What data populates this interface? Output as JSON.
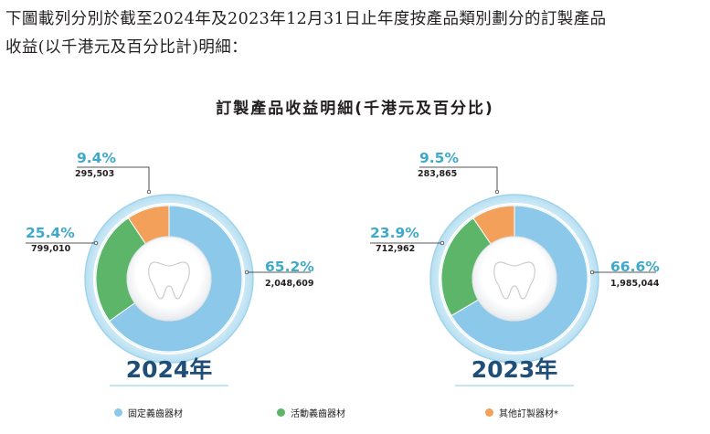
{
  "intro": {
    "line1": "下圖載列分別於截至2024年及2023年12月31日止年度按產品類別劃分的訂製產品",
    "line2": "收益(以千港元及百分比計)明細："
  },
  "colors": {
    "fixed": "#8cc8ea",
    "removable": "#5cb568",
    "other": "#f3a15a",
    "accent": "#3fa9c9",
    "year": "#1f4e79"
  },
  "chart_data": {
    "type": "pie",
    "title": "訂製產品收益明細(千港元及百分比)",
    "categories": [
      "固定義齒器材",
      "活動義齒器材",
      "其他訂製器材*"
    ],
    "charts": [
      {
        "year_label": "2024年",
        "values": [
          2048609,
          799010,
          295503
        ],
        "percent_labels": [
          "65.2%",
          "25.4%",
          "9.4%"
        ],
        "value_labels": [
          "2,048,609",
          "799,010",
          "295,503"
        ]
      },
      {
        "year_label": "2023年",
        "values": [
          1985044,
          712962,
          283865
        ],
        "percent_labels": [
          "66.6%",
          "23.9%",
          "9.5%"
        ],
        "value_labels": [
          "1,985,044",
          "712,962",
          "283,865"
        ]
      }
    ]
  },
  "legend": [
    {
      "label": "固定義齒器材",
      "color": "#8cc8ea"
    },
    {
      "label": "活動義齒器材",
      "color": "#5cb568"
    },
    {
      "label": "其他訂製器材*",
      "color": "#f3a15a"
    }
  ]
}
